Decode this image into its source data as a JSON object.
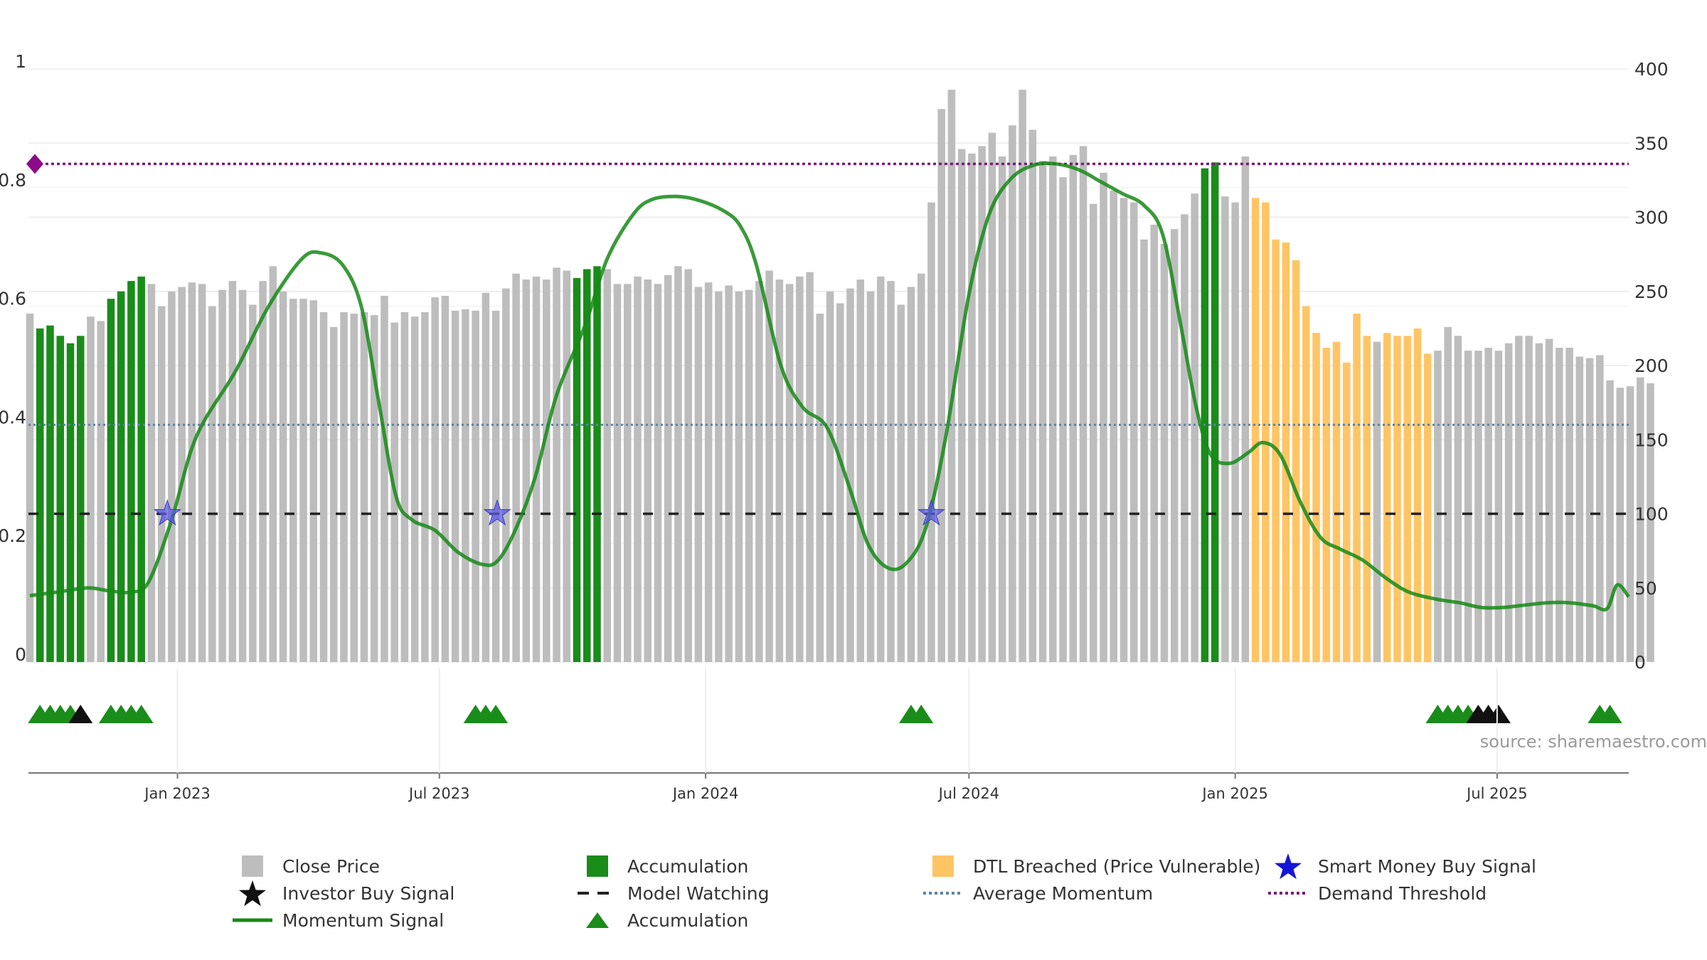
{
  "chart_data": {
    "type": "bar",
    "source_label": "source: sharemaestro.com",
    "x_ticks": [
      "Jan 2023",
      "Jul 2023",
      "Jan 2024",
      "Jul 2024",
      "Jan 2025",
      "Jul 2025"
    ],
    "x_range": [
      "2022-09-20",
      "2025-09-30"
    ],
    "left_axis": {
      "range": [
        0,
        1
      ],
      "ticks": [
        "0",
        "0.2",
        "0.4",
        "0.6",
        "0.8",
        "1"
      ],
      "tick_values": [
        0,
        0.2,
        0.4,
        0.6,
        0.8,
        1
      ]
    },
    "right_axis": {
      "range": [
        0,
        400
      ],
      "ticks": [
        "0",
        "50",
        "100",
        "150",
        "200",
        "250",
        "300",
        "350",
        "400"
      ],
      "tick_values": [
        0,
        50,
        100,
        150,
        200,
        250,
        300,
        350,
        400
      ]
    },
    "series": [
      {
        "name": "Close Price",
        "color": "#bdbdbd",
        "weeks_start": "2022-09-21",
        "states_legend": {
          "g": "Close Price",
          "a": "Accumulation",
          "o": "DTL Breached (Price Vulnerable)"
        },
        "values": [
          235,
          225,
          227,
          220,
          215,
          220,
          233,
          230,
          245,
          250,
          257,
          260,
          255,
          240,
          250,
          253,
          256,
          255,
          240,
          251,
          257,
          251,
          241,
          257,
          267,
          250,
          245,
          245,
          244,
          236,
          226,
          236,
          235,
          236,
          234,
          247,
          229,
          236,
          233,
          236,
          246,
          247,
          237,
          238,
          237,
          249,
          237,
          252,
          262,
          258,
          260,
          258,
          266,
          264,
          259,
          265,
          267,
          265,
          255,
          255,
          260,
          258,
          255,
          261,
          267,
          265,
          253,
          256,
          250,
          254,
          250,
          251,
          257,
          264,
          258,
          255,
          260,
          263,
          235,
          250,
          242,
          252,
          258,
          250,
          260,
          257,
          241,
          253,
          262,
          310,
          373,
          386,
          346,
          343,
          348,
          357,
          341,
          362,
          386,
          359,
          338,
          341,
          327,
          342,
          348,
          309,
          330,
          318,
          313,
          310,
          285,
          295,
          282,
          292,
          302,
          316,
          333,
          337,
          314,
          310,
          341,
          313,
          310,
          285,
          283,
          271,
          240,
          222,
          212,
          216,
          202,
          235,
          220,
          216,
          222,
          220,
          220,
          225,
          208,
          210,
          226,
          220,
          210,
          210,
          212,
          210,
          215,
          220,
          220,
          215,
          218,
          212,
          212,
          206,
          205,
          207,
          190,
          185,
          186,
          192,
          188
        ],
        "states": "gaaaaaggaaaaggggggggggggggggggggggggggggggggggggggggggaaagggggggggggggggggggggggggggggggggggggggggggggggggggggggggggaagggoooooooooooogoooooggggggggggggggggggggggoggggggggggggggggggggggggggggggaaaaaaaagggggggaag"
      },
      {
        "name": "Momentum Signal",
        "color": "#168a16",
        "points": [
          [
            "2022-09-21",
            0.112
          ],
          [
            "2022-10-10",
            0.118
          ],
          [
            "2022-10-31",
            0.125
          ],
          [
            "2022-11-15",
            0.12
          ],
          [
            "2022-11-30",
            0.118
          ],
          [
            "2022-12-12",
            0.135
          ],
          [
            "2022-12-28",
            0.24
          ],
          [
            "2023-01-14",
            0.38
          ],
          [
            "2023-02-10",
            0.49
          ],
          [
            "2023-03-05",
            0.6
          ],
          [
            "2023-03-28",
            0.68
          ],
          [
            "2023-04-10",
            0.69
          ],
          [
            "2023-04-25",
            0.67
          ],
          [
            "2023-05-08",
            0.6
          ],
          [
            "2023-05-20",
            0.44
          ],
          [
            "2023-06-01",
            0.28
          ],
          [
            "2023-06-12",
            0.24
          ],
          [
            "2023-06-28",
            0.222
          ],
          [
            "2023-07-14",
            0.185
          ],
          [
            "2023-07-30",
            0.165
          ],
          [
            "2023-08-10",
            0.17
          ],
          [
            "2023-08-22",
            0.22
          ],
          [
            "2023-09-05",
            0.31
          ],
          [
            "2023-09-20",
            0.45
          ],
          [
            "2023-10-10",
            0.57
          ],
          [
            "2023-10-25",
            0.68
          ],
          [
            "2023-11-12",
            0.755
          ],
          [
            "2023-11-25",
            0.78
          ],
          [
            "2023-12-12",
            0.785
          ],
          [
            "2023-12-28",
            0.778
          ],
          [
            "2024-01-14",
            0.76
          ],
          [
            "2024-01-25",
            0.735
          ],
          [
            "2024-02-05",
            0.67
          ],
          [
            "2024-02-22",
            0.5
          ],
          [
            "2024-03-08",
            0.43
          ],
          [
            "2024-03-25",
            0.395
          ],
          [
            "2024-04-10",
            0.29
          ],
          [
            "2024-04-22",
            0.2
          ],
          [
            "2024-05-05",
            0.16
          ],
          [
            "2024-05-18",
            0.165
          ],
          [
            "2024-06-01",
            0.225
          ],
          [
            "2024-06-15",
            0.38
          ],
          [
            "2024-07-01",
            0.62
          ],
          [
            "2024-07-15",
            0.755
          ],
          [
            "2024-07-30",
            0.815
          ],
          [
            "2024-08-15",
            0.838
          ],
          [
            "2024-08-30",
            0.84
          ],
          [
            "2024-09-15",
            0.83
          ],
          [
            "2024-09-30",
            0.81
          ],
          [
            "2024-10-15",
            0.79
          ],
          [
            "2024-10-30",
            0.77
          ],
          [
            "2024-11-12",
            0.72
          ],
          [
            "2024-11-25",
            0.56
          ],
          [
            "2024-12-05",
            0.43
          ],
          [
            "2024-12-15",
            0.35
          ],
          [
            "2024-12-28",
            0.335
          ],
          [
            "2025-01-10",
            0.353
          ],
          [
            "2025-01-20",
            0.37
          ],
          [
            "2025-02-01",
            0.35
          ],
          [
            "2025-02-15",
            0.27
          ],
          [
            "2025-03-01",
            0.21
          ],
          [
            "2025-03-15",
            0.19
          ],
          [
            "2025-03-30",
            0.172
          ],
          [
            "2025-04-15",
            0.142
          ],
          [
            "2025-05-01",
            0.118
          ],
          [
            "2025-05-20",
            0.106
          ],
          [
            "2025-06-05",
            0.1
          ],
          [
            "2025-06-20",
            0.092
          ],
          [
            "2025-07-05",
            0.092
          ],
          [
            "2025-07-20",
            0.096
          ],
          [
            "2025-08-05",
            0.1
          ],
          [
            "2025-08-20",
            0.1
          ],
          [
            "2025-09-05",
            0.095
          ],
          [
            "2025-09-15",
            0.09
          ],
          [
            "2025-09-22",
            0.13
          ],
          [
            "2025-09-30",
            0.11
          ]
        ]
      },
      {
        "name": "Model Watching",
        "color": "#222222",
        "value": 0.25
      },
      {
        "name": "Average Momentum",
        "color": "#5b83a6",
        "value": 0.4
      },
      {
        "name": "Demand Threshold",
        "color": "#7a1a7a",
        "value": 0.84
      },
      {
        "name": "Smart Money Buy Signal",
        "color": "#2020d0",
        "dates": [
          "2022-12-25",
          "2023-08-10",
          "2024-06-05"
        ],
        "value": 0.25
      },
      {
        "name": "Accumulation",
        "color": "#1a8c1a",
        "dates": [
          "2022-09-28",
          "2022-10-05",
          "2022-10-12",
          "2022-10-19",
          "2022-11-16",
          "2022-11-23",
          "2022-11-30",
          "2022-12-07",
          "2023-07-26",
          "2023-08-02",
          "2023-08-09",
          "2024-05-22",
          "2024-05-29",
          "2025-05-21",
          "2025-05-28",
          "2025-06-04",
          "2025-06-11",
          "2025-09-10",
          "2025-09-17"
        ]
      },
      {
        "name": "Investor Buy Signal",
        "color": "#111111",
        "dates": [
          "2022-10-26",
          "2025-06-18",
          "2025-06-25",
          "2025-07-02"
        ]
      }
    ]
  },
  "legend": [
    {
      "label": "Close Price",
      "icon": "gray-square-icon"
    },
    {
      "label": "Accumulation",
      "icon": "green-square-icon"
    },
    {
      "label": "DTL Breached (Price Vulnerable)",
      "icon": "orange-square-icon"
    },
    {
      "label": "Smart Money Buy Signal",
      "icon": "blue-star-icon"
    },
    {
      "label": "Investor Buy Signal",
      "icon": "black-star-icon"
    },
    {
      "label": "Model Watching",
      "icon": "black-dash-line-icon"
    },
    {
      "label": "Average Momentum",
      "icon": "blue-dotted-line-icon"
    },
    {
      "label": "Demand Threshold",
      "icon": "purple-dotted-line-icon"
    },
    {
      "label": "Momentum Signal",
      "icon": "green-line-icon"
    },
    {
      "label": "Accumulation",
      "icon": "green-triangle-icon"
    }
  ],
  "colors": {
    "gray": "#bdbdbd",
    "green": "#1a8c1a",
    "orange": "#ffc565",
    "blue": "#2020d0",
    "purple": "#7a1a7a",
    "momentum": "#168a16"
  }
}
